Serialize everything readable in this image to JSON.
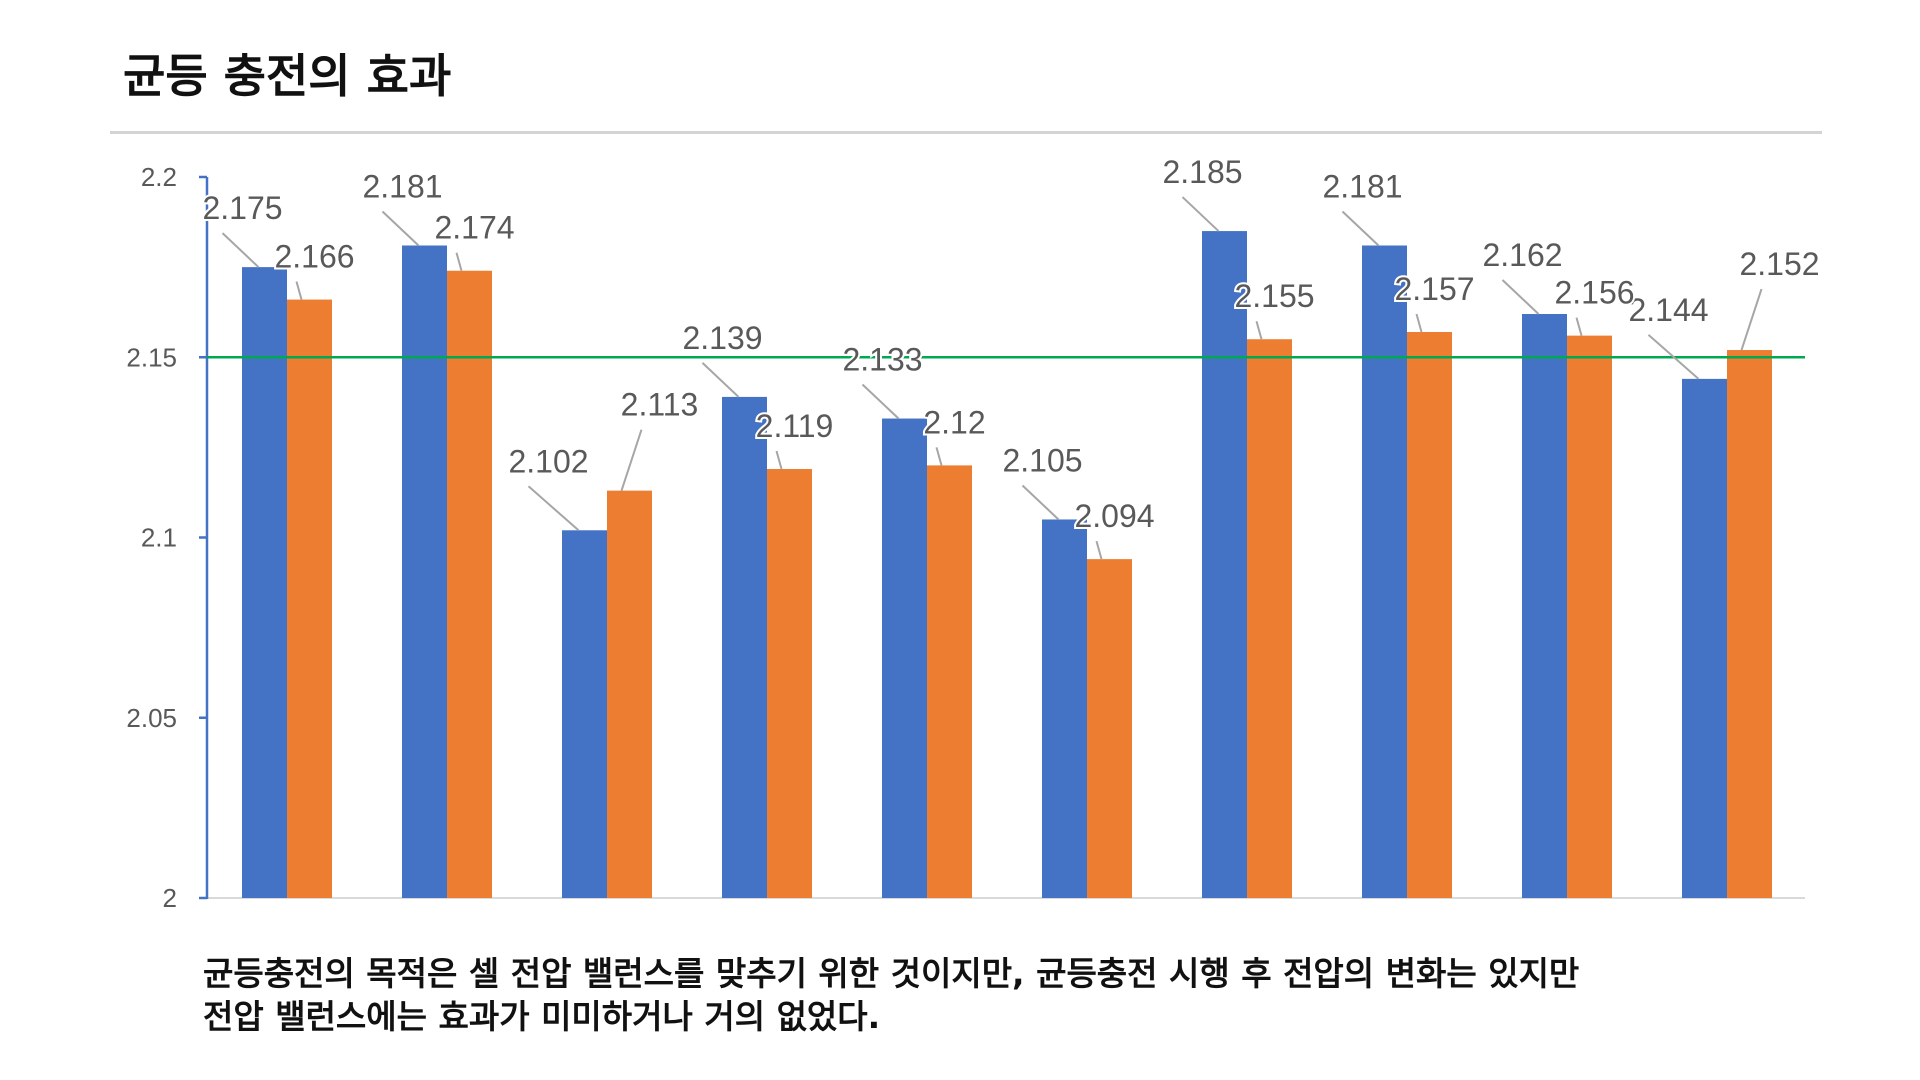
{
  "title": "균등 충전의 효과",
  "caption": {
    "line1": "균등충전의 목적은 셀 전압 밸런스를 맞추기 위한 것이지만, 균등충전 시행 후 전압의 변화는 있지만",
    "line2": "전압 밸런스에는 효과가 미미하거나 거의 없었다."
  },
  "colors": {
    "series1": "#4472c4",
    "series2": "#ed7d31",
    "reference_line": "#00a84f",
    "axis": "#4472c4",
    "label_text": "#595959",
    "leader_line": "#a6a6a6"
  },
  "chart_data": {
    "type": "bar",
    "categories": [
      "",
      "",
      "",
      "",
      "",
      "",
      "",
      "",
      "",
      ""
    ],
    "series": [
      {
        "values": [
          2.175,
          2.181,
          2.102,
          2.139,
          2.133,
          2.105,
          2.185,
          2.181,
          2.162,
          2.144
        ]
      },
      {
        "values": [
          2.166,
          2.174,
          2.113,
          2.119,
          2.12,
          2.094,
          2.155,
          2.157,
          2.156,
          2.152
        ]
      }
    ],
    "ylim": [
      2,
      2.2
    ],
    "yticks": [
      2,
      2.05,
      2.1,
      2.15,
      2.2
    ],
    "reference_line": 2.15,
    "grid": false,
    "legend": "none",
    "data_labels": true
  }
}
